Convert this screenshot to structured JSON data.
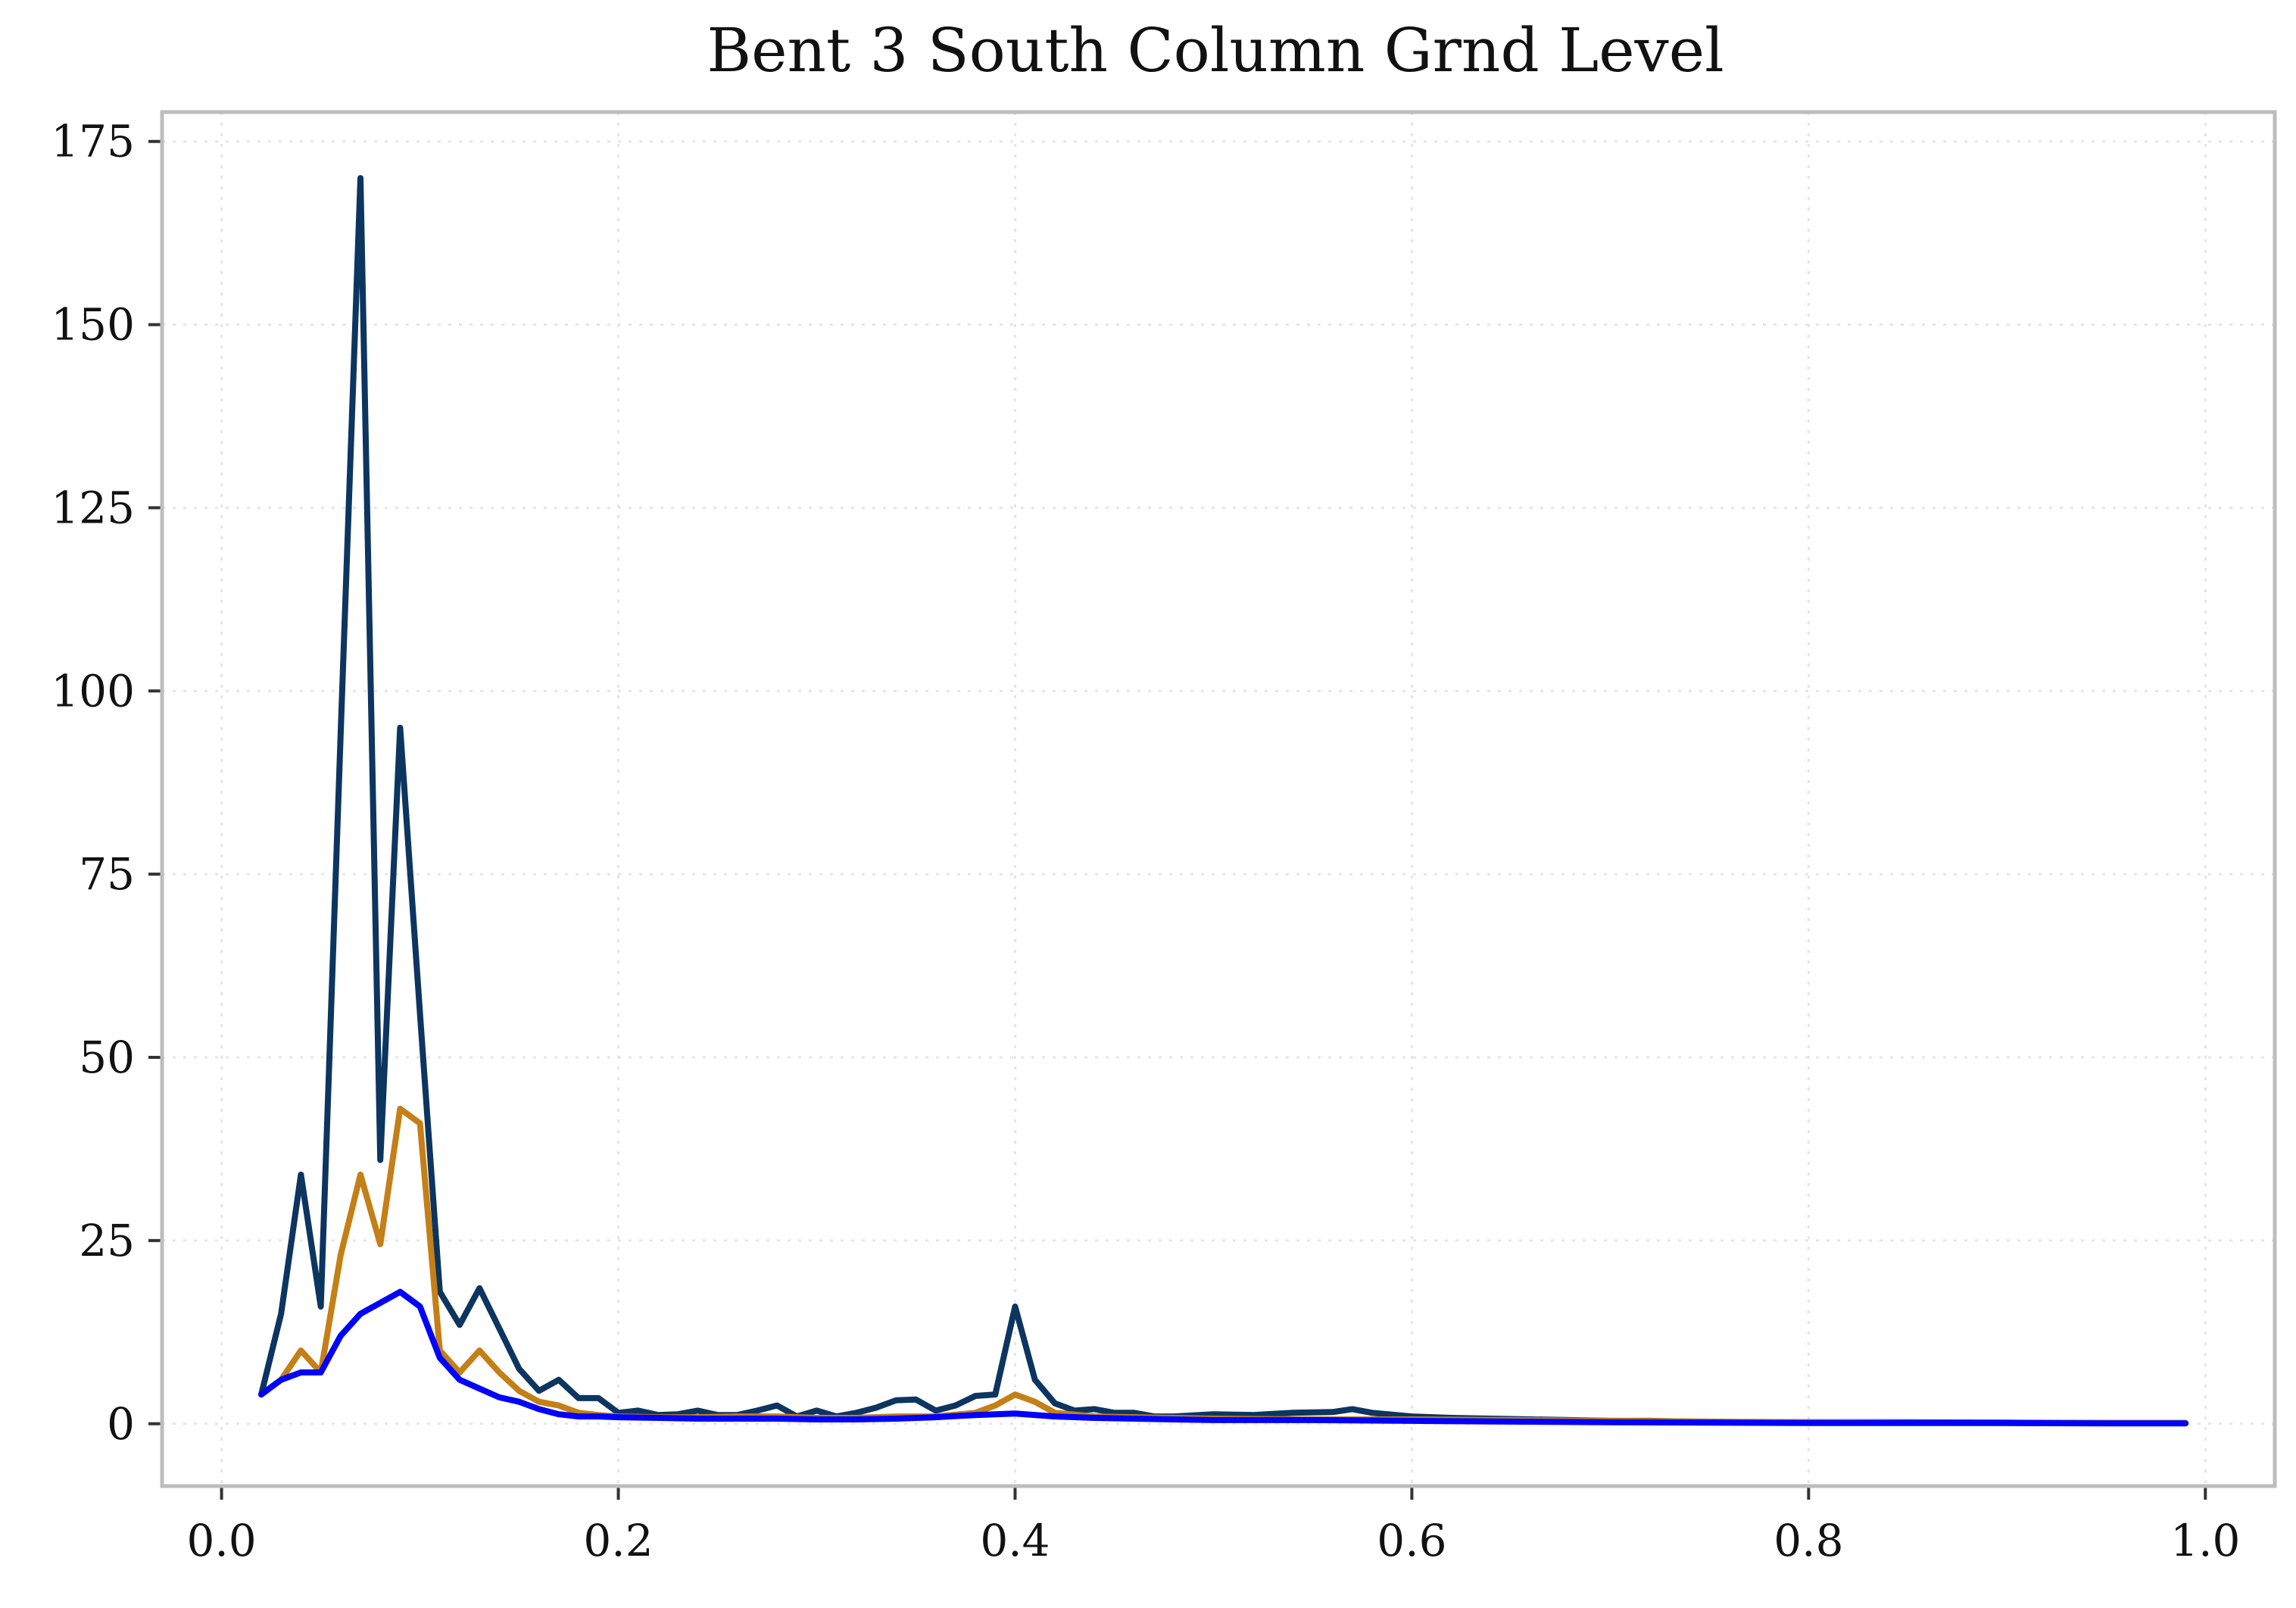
{
  "chart_data": {
    "type": "line",
    "title": "Bent 3 South Column Grnd Level",
    "xlabel": "",
    "ylabel": "",
    "xlim": [
      -0.03,
      1.035
    ],
    "ylim": [
      -8.5,
      179
    ],
    "xticks": [
      0.0,
      0.2,
      0.4,
      0.6,
      0.8,
      1.0
    ],
    "xtick_labels": [
      "0.0",
      "0.2",
      "0.4",
      "0.6",
      "0.8",
      "1.0"
    ],
    "yticks": [
      0,
      25,
      50,
      75,
      100,
      125,
      150,
      175
    ],
    "ytick_labels": [
      "0",
      "25",
      "50",
      "75",
      "100",
      "125",
      "150",
      "175"
    ],
    "grid": true,
    "legend": "none",
    "series": [
      {
        "color": "#0c3560",
        "x": [
          0.02,
          0.03,
          0.04,
          0.05,
          0.06,
          0.07,
          0.08,
          0.09,
          0.1,
          0.11,
          0.12,
          0.13,
          0.14,
          0.15,
          0.16,
          0.17,
          0.18,
          0.19,
          0.2,
          0.21,
          0.22,
          0.23,
          0.24,
          0.25,
          0.26,
          0.27,
          0.28,
          0.29,
          0.3,
          0.31,
          0.32,
          0.33,
          0.34,
          0.35,
          0.36,
          0.37,
          0.38,
          0.39,
          0.4,
          0.41,
          0.42,
          0.43,
          0.44,
          0.45,
          0.46,
          0.47,
          0.48,
          0.5,
          0.52,
          0.54,
          0.56,
          0.57,
          0.58,
          0.6,
          0.62,
          0.64,
          0.66,
          0.68,
          0.7,
          0.72,
          0.74,
          0.76,
          0.78,
          0.8,
          0.85,
          0.9,
          0.95,
          0.99
        ],
        "values": [
          4,
          15,
          34,
          16,
          94,
          170,
          36,
          95,
          56,
          18,
          13.5,
          18.5,
          13,
          7.5,
          4.5,
          6,
          3.5,
          3.5,
          1.5,
          1.8,
          1.2,
          1.3,
          1.8,
          1.2,
          1.2,
          1.8,
          2.5,
          1.0,
          1.8,
          1.0,
          1.5,
          2.2,
          3.2,
          3.3,
          1.8,
          2.5,
          3.8,
          4.0,
          16,
          6,
          2.8,
          1.8,
          2.0,
          1.5,
          1.5,
          1.0,
          1.0,
          1.3,
          1.2,
          1.5,
          1.6,
          2.0,
          1.5,
          1.0,
          0.8,
          0.7,
          0.6,
          0.5,
          0.4,
          0.4,
          0.3,
          0.2,
          0.2,
          0.2,
          0.2,
          0.15,
          0.1,
          0.1
        ]
      },
      {
        "color": "#c47f17",
        "x": [
          0.02,
          0.03,
          0.04,
          0.05,
          0.06,
          0.07,
          0.08,
          0.09,
          0.1,
          0.11,
          0.12,
          0.13,
          0.14,
          0.15,
          0.16,
          0.17,
          0.18,
          0.19,
          0.2,
          0.22,
          0.24,
          0.26,
          0.28,
          0.3,
          0.32,
          0.34,
          0.36,
          0.38,
          0.39,
          0.4,
          0.41,
          0.42,
          0.44,
          0.46,
          0.48,
          0.5,
          0.55,
          0.6,
          0.65,
          0.7,
          0.75,
          0.8,
          0.85,
          0.9,
          0.95,
          0.99
        ],
        "values": [
          4,
          6,
          10,
          7,
          23,
          34,
          24.5,
          43,
          41,
          10,
          7,
          10,
          7,
          4.5,
          3,
          2.5,
          1.5,
          1.2,
          1.0,
          0.9,
          0.9,
          1.0,
          1.0,
          0.8,
          0.8,
          1.0,
          1.0,
          1.5,
          2.5,
          4,
          3,
          1.5,
          1.0,
          0.9,
          0.8,
          0.7,
          0.6,
          0.6,
          0.5,
          0.4,
          0.3,
          0.2,
          0.15,
          0.1,
          0.1,
          0.1
        ]
      },
      {
        "color": "#0000ff",
        "x": [
          0.02,
          0.03,
          0.04,
          0.05,
          0.06,
          0.07,
          0.08,
          0.09,
          0.1,
          0.11,
          0.12,
          0.13,
          0.14,
          0.15,
          0.16,
          0.17,
          0.18,
          0.19,
          0.2,
          0.22,
          0.24,
          0.26,
          0.28,
          0.3,
          0.32,
          0.34,
          0.36,
          0.38,
          0.4,
          0.42,
          0.44,
          0.46,
          0.48,
          0.5,
          0.55,
          0.6,
          0.65,
          0.7,
          0.75,
          0.8,
          0.85,
          0.9,
          0.95,
          0.99
        ],
        "values": [
          4,
          6,
          7,
          7,
          12,
          15,
          16.5,
          18,
          16,
          9,
          6,
          4.8,
          3.6,
          3.0,
          2.0,
          1.3,
          1.0,
          1.0,
          0.9,
          0.8,
          0.7,
          0.7,
          0.7,
          0.6,
          0.6,
          0.7,
          0.9,
          1.2,
          1.4,
          1.0,
          0.8,
          0.7,
          0.6,
          0.5,
          0.5,
          0.4,
          0.3,
          0.2,
          0.15,
          0.1,
          0.1,
          0.1,
          0.05,
          0.05
        ]
      }
    ]
  }
}
